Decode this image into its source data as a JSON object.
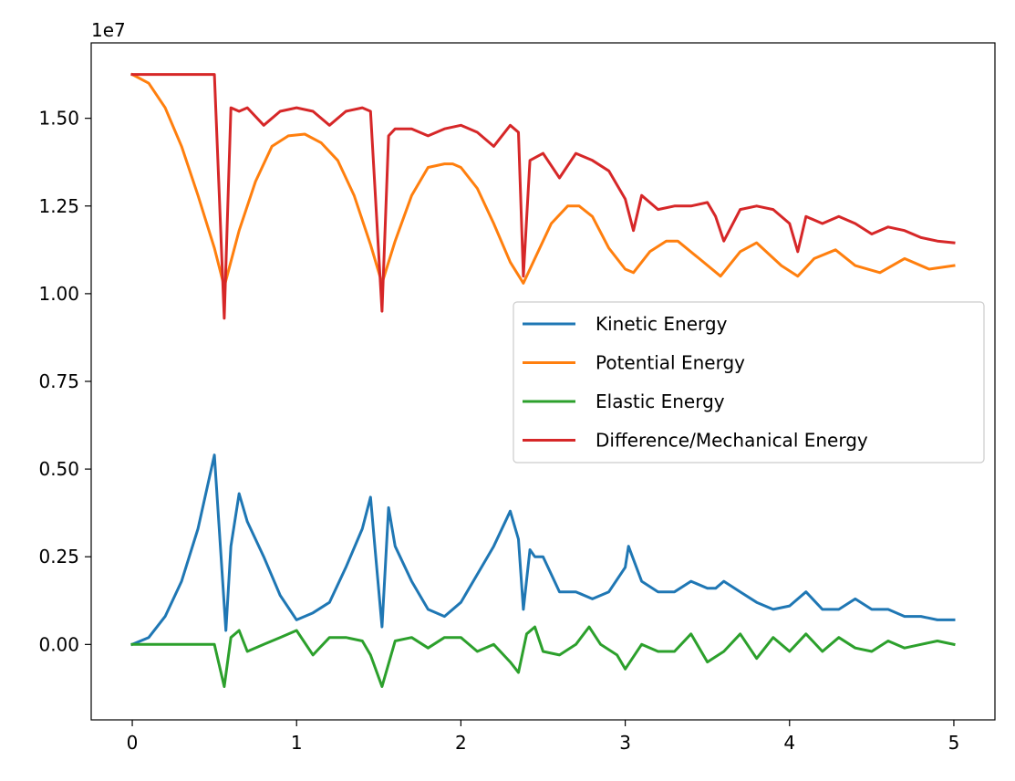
{
  "chart_data": {
    "type": "line",
    "title": "",
    "xlabel": "",
    "ylabel": "",
    "y_offset_label": "1e7",
    "xlim": [
      -0.25,
      5.25
    ],
    "ylim": [
      -0.215,
      1.715
    ],
    "x_ticks": [
      0,
      1,
      2,
      3,
      4,
      5
    ],
    "x_tick_labels": [
      "0",
      "1",
      "2",
      "3",
      "4",
      "5"
    ],
    "y_ticks": [
      0.0,
      0.25,
      0.5,
      0.75,
      1.0,
      1.25,
      1.5
    ],
    "y_tick_labels": [
      "0.00",
      "0.25",
      "0.50",
      "0.75",
      "1.00",
      "1.25",
      "1.50"
    ],
    "grid": false,
    "legend_position": "center-right",
    "series": [
      {
        "name": "Kinetic Energy",
        "color": "#1f77b4",
        "x": [
          0,
          0.1,
          0.2,
          0.3,
          0.4,
          0.5,
          0.57,
          0.6,
          0.65,
          0.7,
          0.8,
          0.9,
          1.0,
          1.1,
          1.2,
          1.3,
          1.4,
          1.45,
          1.48,
          1.52,
          1.56,
          1.6,
          1.7,
          1.8,
          1.9,
          2.0,
          2.1,
          2.2,
          2.3,
          2.35,
          2.38,
          2.42,
          2.45,
          2.5,
          2.6,
          2.7,
          2.8,
          2.9,
          3.0,
          3.02,
          3.1,
          3.2,
          3.3,
          3.4,
          3.5,
          3.55,
          3.6,
          3.7,
          3.8,
          3.9,
          4.0,
          4.1,
          4.2,
          4.3,
          4.4,
          4.5,
          4.6,
          4.7,
          4.8,
          4.9,
          5.0
        ],
        "y": [
          0.0,
          0.02,
          0.08,
          0.18,
          0.33,
          0.54,
          0.04,
          0.28,
          0.43,
          0.35,
          0.25,
          0.14,
          0.07,
          0.09,
          0.12,
          0.22,
          0.33,
          0.42,
          0.26,
          0.05,
          0.39,
          0.28,
          0.18,
          0.1,
          0.08,
          0.12,
          0.2,
          0.28,
          0.38,
          0.3,
          0.1,
          0.27,
          0.25,
          0.25,
          0.15,
          0.15,
          0.13,
          0.15,
          0.22,
          0.28,
          0.18,
          0.15,
          0.15,
          0.18,
          0.16,
          0.16,
          0.18,
          0.15,
          0.12,
          0.1,
          0.11,
          0.15,
          0.1,
          0.1,
          0.13,
          0.1,
          0.1,
          0.08,
          0.08,
          0.07,
          0.07
        ]
      },
      {
        "name": "Potential Energy",
        "color": "#ff7f0e",
        "x": [
          0,
          0.1,
          0.2,
          0.3,
          0.4,
          0.5,
          0.56,
          0.65,
          0.75,
          0.85,
          0.95,
          1.05,
          1.15,
          1.25,
          1.35,
          1.45,
          1.52,
          1.6,
          1.7,
          1.8,
          1.9,
          1.95,
          2.0,
          2.1,
          2.2,
          2.3,
          2.38,
          2.45,
          2.55,
          2.65,
          2.72,
          2.8,
          2.9,
          3.0,
          3.05,
          3.15,
          3.25,
          3.32,
          3.45,
          3.58,
          3.7,
          3.8,
          3.95,
          4.05,
          4.15,
          4.28,
          4.4,
          4.55,
          4.7,
          4.85,
          5.0
        ],
        "y": [
          1.625,
          1.6,
          1.53,
          1.42,
          1.28,
          1.13,
          1.02,
          1.18,
          1.32,
          1.42,
          1.45,
          1.455,
          1.43,
          1.38,
          1.28,
          1.14,
          1.03,
          1.15,
          1.28,
          1.36,
          1.37,
          1.37,
          1.36,
          1.3,
          1.2,
          1.09,
          1.03,
          1.1,
          1.2,
          1.25,
          1.25,
          1.22,
          1.13,
          1.07,
          1.06,
          1.12,
          1.15,
          1.15,
          1.1,
          1.05,
          1.12,
          1.145,
          1.08,
          1.05,
          1.1,
          1.125,
          1.08,
          1.06,
          1.1,
          1.07,
          1.08
        ]
      },
      {
        "name": "Elastic Energy",
        "color": "#2ca02c",
        "x": [
          0,
          0.1,
          0.2,
          0.3,
          0.4,
          0.5,
          0.56,
          0.6,
          0.65,
          0.7,
          0.8,
          0.9,
          1.0,
          1.1,
          1.2,
          1.3,
          1.4,
          1.45,
          1.52,
          1.6,
          1.7,
          1.8,
          1.9,
          2.0,
          2.1,
          2.2,
          2.3,
          2.35,
          2.4,
          2.45,
          2.5,
          2.6,
          2.7,
          2.78,
          2.85,
          2.95,
          3.0,
          3.1,
          3.2,
          3.3,
          3.4,
          3.5,
          3.6,
          3.7,
          3.8,
          3.9,
          4.0,
          4.1,
          4.2,
          4.3,
          4.4,
          4.5,
          4.6,
          4.7,
          4.8,
          4.9,
          5.0
        ],
        "y": [
          0.0,
          0.0,
          0.0,
          0.0,
          0.0,
          0.0,
          -0.12,
          0.02,
          0.04,
          -0.02,
          0.0,
          0.02,
          0.04,
          -0.03,
          0.02,
          0.02,
          0.01,
          -0.03,
          -0.12,
          0.01,
          0.02,
          -0.01,
          0.02,
          0.02,
          -0.02,
          0.0,
          -0.05,
          -0.08,
          0.03,
          0.05,
          -0.02,
          -0.03,
          0.0,
          0.05,
          0.0,
          -0.03,
          -0.07,
          0.0,
          -0.02,
          -0.02,
          0.03,
          -0.05,
          -0.02,
          0.03,
          -0.04,
          0.02,
          -0.02,
          0.03,
          -0.02,
          0.02,
          -0.01,
          -0.02,
          0.01,
          -0.01,
          0.0,
          0.01,
          0.0
        ]
      },
      {
        "name": "Difference/Mechanical Energy",
        "color": "#d62728",
        "x": [
          0,
          0.1,
          0.2,
          0.3,
          0.4,
          0.5,
          0.56,
          0.6,
          0.65,
          0.7,
          0.8,
          0.9,
          1.0,
          1.1,
          1.2,
          1.3,
          1.4,
          1.45,
          1.52,
          1.56,
          1.6,
          1.7,
          1.8,
          1.9,
          2.0,
          2.1,
          2.2,
          2.3,
          2.35,
          2.38,
          2.42,
          2.5,
          2.6,
          2.7,
          2.8,
          2.9,
          3.0,
          3.05,
          3.1,
          3.2,
          3.3,
          3.4,
          3.5,
          3.55,
          3.6,
          3.7,
          3.8,
          3.9,
          4.0,
          4.05,
          4.1,
          4.2,
          4.3,
          4.4,
          4.5,
          4.6,
          4.7,
          4.8,
          4.9,
          5.0
        ],
        "y": [
          1.625,
          1.625,
          1.625,
          1.625,
          1.625,
          1.625,
          0.93,
          1.53,
          1.52,
          1.53,
          1.48,
          1.52,
          1.53,
          1.52,
          1.48,
          1.52,
          1.53,
          1.52,
          0.95,
          1.45,
          1.47,
          1.47,
          1.45,
          1.47,
          1.48,
          1.46,
          1.42,
          1.48,
          1.46,
          1.05,
          1.38,
          1.4,
          1.33,
          1.4,
          1.38,
          1.35,
          1.27,
          1.18,
          1.28,
          1.24,
          1.25,
          1.25,
          1.26,
          1.22,
          1.15,
          1.24,
          1.25,
          1.24,
          1.2,
          1.12,
          1.22,
          1.2,
          1.22,
          1.2,
          1.17,
          1.19,
          1.18,
          1.16,
          1.15,
          1.145
        ]
      }
    ]
  }
}
